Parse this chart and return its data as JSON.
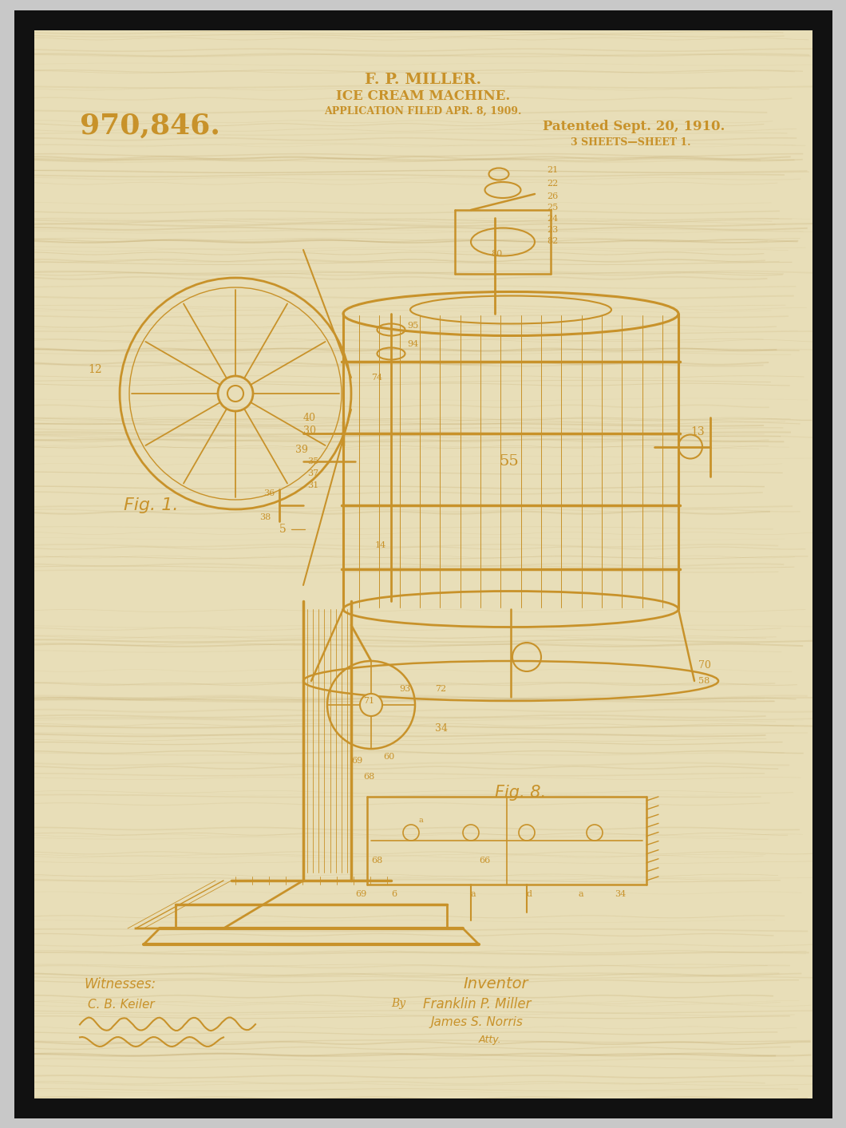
{
  "bg_outer": "#c8c8c8",
  "bg_wood": "#e8deb8",
  "frame_color": "#111111",
  "line_color": "#c8922a",
  "text_color": "#c8922a",
  "title1": "F. P. MILLER.",
  "title2": "ICE CREAM MACHINE.",
  "title3": "APPLICATION FILED APR. 8, 1909.",
  "patent_num": "970,846.",
  "patent_date": "Patented Sept. 20, 1910.",
  "sheet_info": "3 SHEETS—SHEET 1.",
  "fig1_label": "Fig. 1.",
  "fig8_label": "Fig. 8.",
  "witnesses_label": "Witnesses:",
  "inventor_label": "Inventor",
  "inventor_name": "Franklin P. Miller",
  "witness1": "C. B. Keiler",
  "atty": "James S. Norris",
  "figsize": [
    10.6,
    14.13
  ],
  "dpi": 100
}
